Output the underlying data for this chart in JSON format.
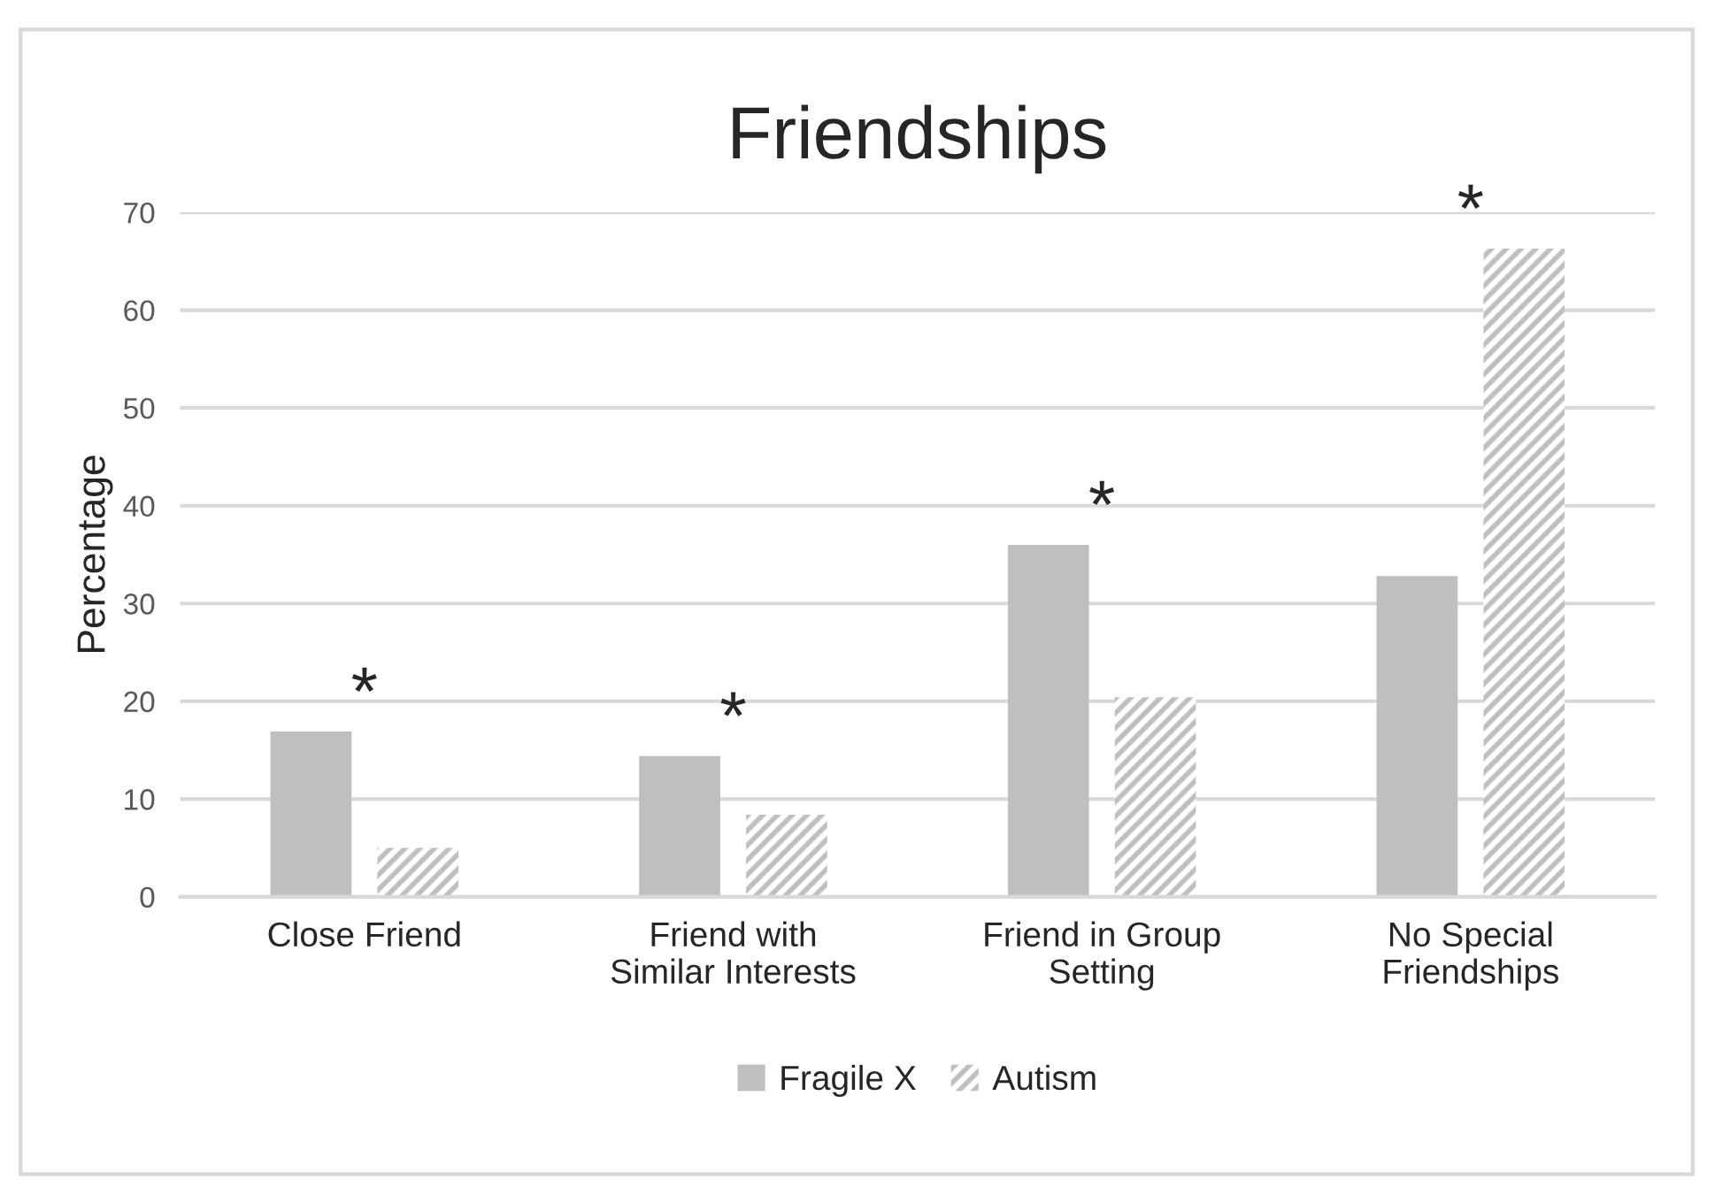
{
  "chart_data": {
    "type": "bar",
    "title": "Friendships",
    "ylabel": "Percentage",
    "categories": [
      "Close Friend",
      "Friend with\nSimilar Interests",
      "Friend in Group\nSetting",
      "No Special\nFriendships"
    ],
    "series": [
      {
        "name": "Fragile X",
        "color": "#bfbfbf",
        "values": [
          16.9,
          14.4,
          36.0,
          32.8
        ]
      },
      {
        "name": "Autism",
        "color": "#bfbfbf",
        "values": [
          5.0,
          8.4,
          20.4,
          66.3
        ]
      }
    ],
    "ylim": [
      0,
      70
    ],
    "yticks": [
      0,
      10,
      20,
      30,
      40,
      50,
      60,
      70
    ],
    "grid": "y",
    "legend": "bottom",
    "annotations": [
      "*",
      "*",
      "*",
      "*"
    ]
  }
}
